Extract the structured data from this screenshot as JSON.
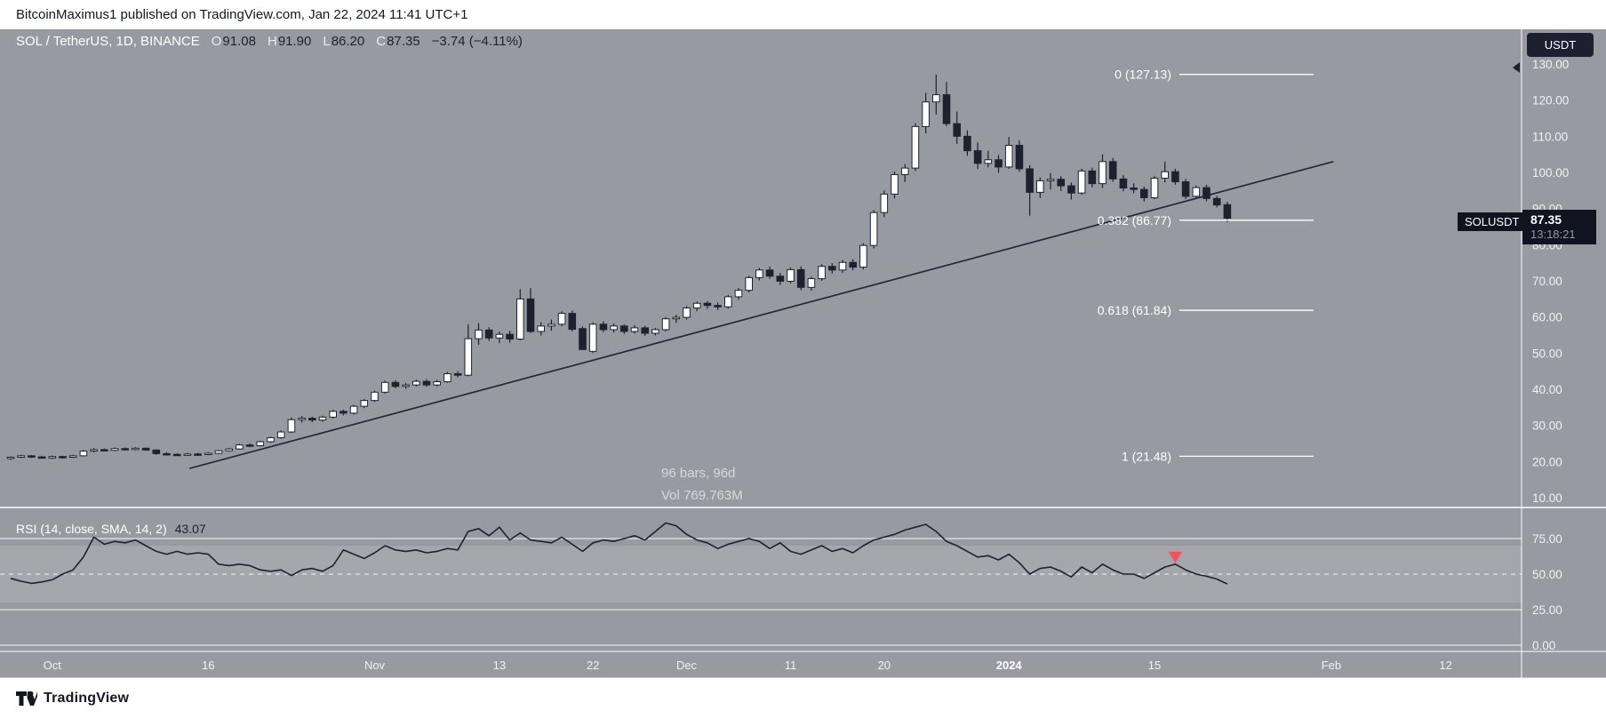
{
  "header": {
    "title": "BitcoinMaximus1 published on TradingView.com, Jan 22, 2024 11:41 UTC+1"
  },
  "legend": {
    "symbol": "SOL / TetherUS, 1D, BINANCE",
    "open_label": "O",
    "open": "91.08",
    "high_label": "H",
    "high": "91.90",
    "low_label": "L",
    "low": "86.20",
    "close_label": "C",
    "close": "87.35",
    "change": "−3.74 (−4.11%)"
  },
  "currency_toggle": {
    "label": "USDT"
  },
  "price_label": {
    "symbol": "SOLUSDT",
    "price": "87.35",
    "countdown": "13:18:21"
  },
  "range_info": {
    "bars": "96 bars, 96d",
    "volume": "Vol 769.763M"
  },
  "rsi_legend": {
    "label": "RSI (14, close, SMA, 14, 2)",
    "value": "43.07"
  },
  "footer": {
    "brand": "TradingView"
  },
  "colors": {
    "background": "#989aa1",
    "candle_up": "#ffffff",
    "candle_down": "#1e2230",
    "line_dark": "#23273a",
    "grid_white": "#ffffff",
    "marker_red": "#f7525f",
    "label_box": "#0f1420",
    "text_dark": "#1e222d"
  },
  "chart_data": [
    {
      "type": "candlestick",
      "title": "SOL / TetherUS, 1D, BINANCE",
      "ylabel": "Price (USDT)",
      "ylim": [
        10,
        130
      ],
      "grid": false,
      "price_ticks": [
        130,
        120,
        110,
        100,
        90,
        80,
        70,
        60,
        50,
        40,
        30,
        20,
        10
      ],
      "time_ticks": [
        {
          "label": "Oct",
          "bar": 4
        },
        {
          "label": "16",
          "bar": 19
        },
        {
          "label": "Nov",
          "bar": 35
        },
        {
          "label": "13",
          "bar": 47
        },
        {
          "label": "22",
          "bar": 56
        },
        {
          "label": "Dec",
          "bar": 65
        },
        {
          "label": "11",
          "bar": 75
        },
        {
          "label": "20",
          "bar": 84
        },
        {
          "label": "2024",
          "bar": 96,
          "emphasis": true
        },
        {
          "label": "15",
          "bar": 110
        },
        {
          "label": "Feb",
          "bar": 127
        },
        {
          "label": "12",
          "bar": 138
        }
      ],
      "fib_levels": [
        {
          "label": "0 (127.13)",
          "price": 127.13
        },
        {
          "label": "0.382 (86.77)",
          "price": 86.77
        },
        {
          "label": "0.618 (61.84)",
          "price": 61.84
        },
        {
          "label": "1 (21.48)",
          "price": 21.48
        }
      ],
      "trendline": {
        "bar1": 17.2,
        "price1": 18.1,
        "bar2": 127.2,
        "price2": 103.0
      },
      "last_price": 87.35,
      "candles": [
        [
          20.9,
          21.4,
          20.5,
          21.2
        ],
        [
          21.2,
          21.9,
          21.0,
          21.6
        ],
        [
          21.6,
          21.8,
          21.0,
          21.3
        ],
        [
          21.3,
          21.6,
          20.8,
          21.0
        ],
        [
          21.0,
          21.7,
          20.7,
          21.4
        ],
        [
          21.4,
          21.6,
          20.9,
          21.2
        ],
        [
          21.2,
          21.9,
          21.0,
          21.6
        ],
        [
          21.6,
          23.2,
          21.4,
          22.9
        ],
        [
          22.9,
          23.7,
          22.5,
          23.3
        ],
        [
          23.3,
          23.6,
          22.8,
          23.1
        ],
        [
          23.1,
          23.9,
          22.9,
          23.6
        ],
        [
          23.6,
          23.9,
          23.1,
          23.4
        ],
        [
          23.4,
          24.0,
          23.1,
          23.7
        ],
        [
          23.7,
          23.9,
          23.0,
          23.2
        ],
        [
          23.2,
          23.4,
          21.9,
          22.2
        ],
        [
          22.2,
          22.6,
          21.7,
          22.0
        ],
        [
          22.0,
          22.3,
          21.6,
          21.9
        ],
        [
          21.9,
          22.4,
          21.7,
          22.1
        ],
        [
          22.1,
          22.4,
          21.7,
          22.0
        ],
        [
          22.0,
          22.6,
          21.8,
          22.3
        ],
        [
          22.3,
          23.2,
          22.1,
          23.0
        ],
        [
          23.0,
          23.8,
          22.8,
          23.5
        ],
        [
          23.5,
          24.9,
          23.3,
          24.6
        ],
        [
          24.6,
          25.0,
          24.0,
          24.4
        ],
        [
          24.4,
          25.8,
          24.2,
          25.5
        ],
        [
          25.5,
          26.9,
          25.2,
          26.6
        ],
        [
          26.6,
          28.6,
          26.3,
          28.2
        ],
        [
          28.2,
          32.2,
          27.9,
          31.6
        ],
        [
          31.6,
          32.6,
          30.8,
          32.0
        ],
        [
          32.0,
          32.4,
          30.9,
          31.5
        ],
        [
          31.5,
          32.7,
          31.0,
          32.3
        ],
        [
          32.3,
          34.3,
          31.9,
          33.9
        ],
        [
          33.9,
          34.4,
          32.8,
          33.4
        ],
        [
          33.4,
          35.7,
          33.0,
          35.3
        ],
        [
          35.3,
          37.3,
          34.8,
          36.9
        ],
        [
          36.9,
          39.6,
          36.5,
          39.2
        ],
        [
          39.2,
          42.4,
          38.8,
          41.9
        ],
        [
          41.9,
          42.5,
          40.3,
          40.8
        ],
        [
          40.8,
          41.8,
          40.1,
          41.2
        ],
        [
          41.2,
          42.7,
          40.8,
          42.2
        ],
        [
          42.2,
          42.8,
          40.7,
          41.2
        ],
        [
          41.2,
          42.6,
          40.8,
          42.1
        ],
        [
          42.1,
          44.8,
          41.8,
          44.3
        ],
        [
          44.3,
          45.0,
          43.3,
          43.9
        ],
        [
          43.9,
          58.0,
          43.6,
          54.0
        ],
        [
          54.0,
          58.3,
          52.3,
          56.4
        ],
        [
          56.4,
          57.2,
          53.4,
          54.2
        ],
        [
          54.2,
          56.0,
          52.8,
          55.2
        ],
        [
          55.2,
          56.2,
          52.9,
          53.9
        ],
        [
          53.9,
          67.7,
          53.5,
          65.0
        ],
        [
          65.0,
          68.0,
          55.6,
          56.0
        ],
        [
          56.0,
          58.6,
          54.9,
          57.5
        ],
        [
          57.5,
          59.3,
          56.2,
          58.0
        ],
        [
          58.0,
          61.6,
          57.4,
          61.0
        ],
        [
          61.0,
          61.8,
          56.0,
          56.6
        ],
        [
          56.8,
          57.4,
          50.9,
          51.0
        ],
        [
          50.5,
          58.5,
          50.0,
          58.0
        ],
        [
          58.0,
          58.8,
          55.8,
          56.5
        ],
        [
          56.5,
          58.2,
          55.7,
          57.5
        ],
        [
          57.5,
          58.0,
          55.3,
          56.0
        ],
        [
          56.0,
          57.8,
          55.4,
          57.0
        ],
        [
          57.0,
          57.6,
          54.8,
          55.5
        ],
        [
          55.5,
          57.0,
          54.9,
          56.5
        ],
        [
          56.5,
          60.0,
          56.0,
          59.5
        ],
        [
          59.5,
          60.6,
          58.4,
          59.9
        ],
        [
          59.9,
          63.0,
          59.3,
          62.5
        ],
        [
          62.5,
          64.3,
          61.6,
          63.8
        ],
        [
          63.8,
          64.4,
          62.3,
          63.2
        ],
        [
          63.2,
          64.0,
          61.9,
          62.8
        ],
        [
          62.8,
          66.1,
          62.3,
          65.6
        ],
        [
          65.6,
          68.0,
          64.8,
          67.4
        ],
        [
          67.4,
          71.4,
          66.8,
          70.9
        ],
        [
          70.9,
          73.6,
          70.1,
          73.0
        ],
        [
          73.0,
          74.0,
          70.6,
          71.3
        ],
        [
          71.3,
          72.2,
          68.9,
          69.9
        ],
        [
          69.9,
          73.7,
          69.3,
          73.1
        ],
        [
          73.1,
          74.0,
          67.4,
          68.2
        ],
        [
          68.2,
          71.2,
          67.3,
          70.6
        ],
        [
          70.6,
          74.6,
          70.0,
          74.0
        ],
        [
          74.0,
          74.9,
          72.0,
          73.0
        ],
        [
          73.0,
          75.8,
          72.2,
          75.1
        ],
        [
          75.1,
          76.0,
          72.9,
          73.8
        ],
        [
          73.8,
          80.4,
          73.2,
          79.8
        ],
        [
          79.8,
          89.6,
          79.0,
          88.9
        ],
        [
          88.9,
          95.0,
          87.6,
          94.0
        ],
        [
          94.0,
          100.2,
          92.8,
          99.4
        ],
        [
          99.4,
          102.3,
          97.3,
          101.2
        ],
        [
          101.2,
          113.6,
          100.4,
          112.7
        ],
        [
          112.7,
          122.0,
          110.8,
          119.5
        ],
        [
          119.5,
          127.1,
          116.0,
          121.5
        ],
        [
          121.5,
          125.0,
          112.8,
          113.5
        ],
        [
          113.5,
          116.8,
          107.9,
          110.0
        ],
        [
          110.0,
          111.6,
          104.6,
          106.0
        ],
        [
          106.0,
          108.3,
          100.9,
          102.5
        ],
        [
          102.5,
          106.0,
          101.4,
          103.5
        ],
        [
          103.5,
          104.8,
          99.9,
          101.5
        ],
        [
          101.5,
          109.8,
          101.0,
          107.5
        ],
        [
          107.5,
          108.9,
          100.2,
          101.0
        ],
        [
          101.0,
          102.0,
          88.0,
          94.5
        ],
        [
          94.5,
          98.6,
          92.9,
          97.7
        ],
        [
          97.7,
          99.8,
          95.3,
          98.1
        ],
        [
          98.1,
          99.0,
          94.9,
          96.3
        ],
        [
          96.3,
          97.2,
          92.5,
          94.3
        ],
        [
          94.3,
          101.0,
          93.8,
          100.4
        ],
        [
          100.4,
          101.3,
          95.9,
          96.9
        ],
        [
          96.9,
          105.0,
          95.7,
          103.0
        ],
        [
          103.0,
          104.0,
          97.4,
          98.2
        ],
        [
          98.2,
          99.3,
          94.8,
          95.7
        ],
        [
          95.7,
          97.0,
          94.2,
          95.3
        ],
        [
          95.3,
          96.1,
          91.9,
          93.0
        ],
        [
          93.0,
          99.0,
          92.6,
          98.4
        ],
        [
          98.4,
          103.0,
          97.2,
          100.2
        ],
        [
          100.2,
          101.0,
          96.6,
          97.4
        ],
        [
          97.4,
          98.2,
          92.6,
          93.4
        ],
        [
          93.4,
          96.4,
          92.9,
          95.8
        ],
        [
          95.8,
          96.6,
          92.0,
          92.8
        ],
        [
          92.8,
          93.5,
          90.3,
          91.0
        ],
        [
          91.08,
          91.9,
          86.2,
          87.35
        ]
      ]
    },
    {
      "type": "line",
      "name": "RSI (14, close, SMA, 14, 2)",
      "current_value": 43.07,
      "ylim": [
        0,
        100
      ],
      "levels": [
        75,
        50,
        25,
        0
      ],
      "dashed_level": 50,
      "band": [
        30,
        70
      ],
      "legend_position": "top-left",
      "marker": {
        "bar": 112,
        "value": 57,
        "shape": "triangle-down",
        "color": "#f7525f"
      },
      "values": [
        47,
        45,
        43.5,
        44.5,
        46,
        50,
        53,
        62,
        76,
        71,
        73,
        72,
        74,
        70,
        66,
        64,
        66,
        64,
        65,
        64,
        57,
        56,
        57,
        56,
        53,
        52,
        53,
        49,
        53,
        54,
        52,
        56,
        67,
        64,
        61,
        65,
        70,
        67,
        66,
        67,
        65,
        66,
        68,
        67,
        80,
        82,
        77,
        83,
        74,
        79,
        74,
        73,
        72,
        76,
        71,
        66,
        72,
        74,
        73,
        75,
        77,
        74,
        80,
        86,
        84,
        78,
        74,
        72,
        68,
        71,
        73,
        75,
        73,
        68,
        72,
        66,
        64,
        67,
        70,
        66,
        68,
        65,
        70,
        74,
        76,
        78,
        81,
        83,
        85,
        80,
        73,
        70,
        66,
        62,
        63,
        60,
        64,
        58,
        50,
        54,
        55,
        52,
        48,
        55,
        51,
        57,
        53,
        50,
        50,
        47,
        51,
        55,
        57,
        53,
        50,
        48.5,
        46.5,
        43.07
      ]
    }
  ]
}
